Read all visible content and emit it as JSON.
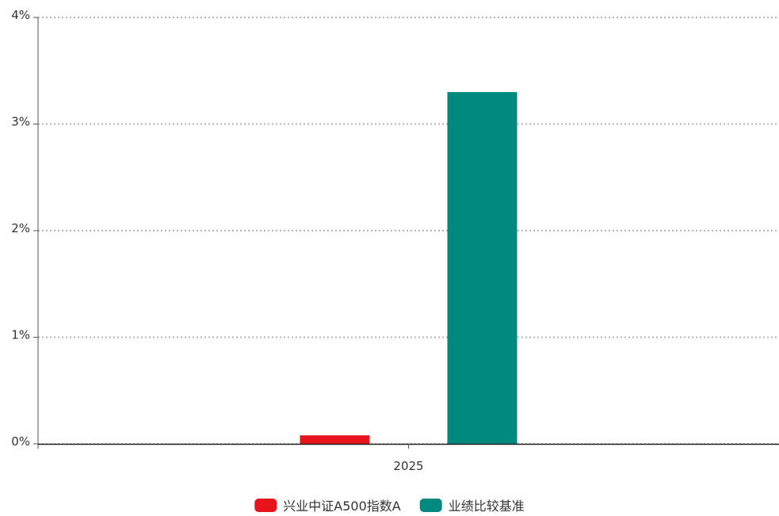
{
  "chart_data": {
    "type": "bar",
    "categories": [
      "2025"
    ],
    "series": [
      {
        "name": "兴业中证A500指数A",
        "values": [
          0.08
        ],
        "color": "#e8141b"
      },
      {
        "name": "业绩比较基准",
        "values": [
          3.3
        ],
        "color": "#00897f"
      }
    ],
    "ylim": [
      0,
      4
    ],
    "yticks": [
      0,
      1,
      2,
      3,
      4
    ],
    "ytick_labels": [
      "0%",
      "1%",
      "2%",
      "3%",
      "4%"
    ],
    "grid": true,
    "legend": "bottom-center"
  }
}
